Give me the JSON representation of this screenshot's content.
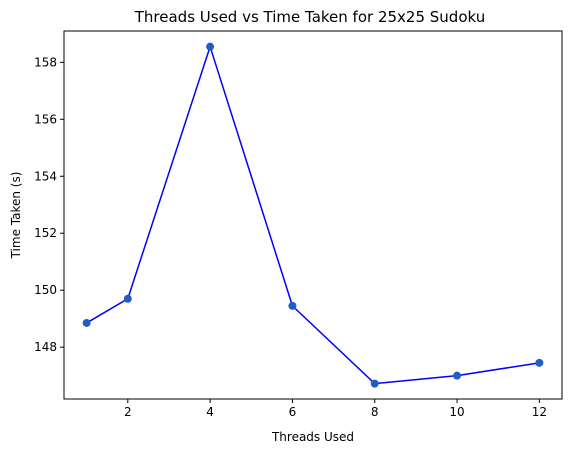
{
  "chart_data": {
    "type": "line",
    "title": "Threads Used vs Time Taken for 25x25 Sudoku",
    "xlabel": "Threads Used",
    "ylabel": "Time Taken (s)",
    "x": [
      1,
      2,
      4,
      6,
      8,
      10,
      12
    ],
    "series": [
      {
        "values": [
          148.85,
          149.7,
          158.55,
          149.45,
          146.72,
          147.0,
          147.45
        ]
      }
    ],
    "xlim": [
      0.45,
      12.55
    ],
    "ylim": [
      146.18,
      159.1
    ],
    "xticks": [
      "2",
      "4",
      "6",
      "8",
      "10",
      "12"
    ],
    "yticks": [
      "148",
      "150",
      "152",
      "154",
      "156",
      "158"
    ],
    "grid": false,
    "legend": "none",
    "colors": {
      "line": "#0000ff",
      "marker": "#1f5fbf"
    }
  }
}
